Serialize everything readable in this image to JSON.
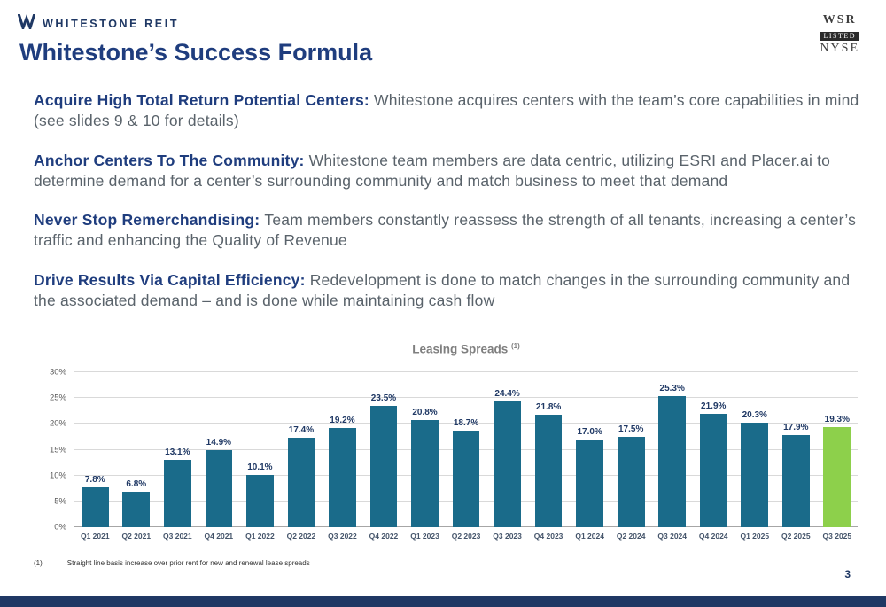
{
  "slide": {
    "page_number": "3"
  },
  "header": {
    "logo_text": "WHITESTONE REIT",
    "nyse_badge": {
      "ticker": "WSR",
      "listed": "LISTED",
      "exchange": "NYSE"
    }
  },
  "title": "Whitestone’s Success Formula",
  "paragraphs": [
    {
      "lead": "Acquire High Total Return Potential Centers:",
      "text": "Whitestone acquires centers with the team’s core capabilities in mind (see slides 9 & 10 for details)"
    },
    {
      "lead": "Anchor Centers To The Community:",
      "text": "Whitestone team members are data centric, utilizing ESRI and Placer.ai to determine demand for a center’s surrounding community and match business to meet that demand"
    },
    {
      "lead": "Never Stop Remerchandising:",
      "text": "Team members constantly reassess the strength of all tenants, increasing a center’s traffic and enhancing the Quality of Revenue"
    },
    {
      "lead": "Drive Results Via Capital Efficiency:",
      "text": "Redevelopment is done to match changes in the surrounding community and the associated demand – and is done while maintaining cash flow"
    }
  ],
  "chart_data": {
    "type": "bar",
    "title": "Leasing Spreads",
    "title_superscript": "(1)",
    "categories": [
      "Q1 2021",
      "Q2 2021",
      "Q3 2021",
      "Q4 2021",
      "Q1 2022",
      "Q2 2022",
      "Q3 2022",
      "Q4 2022",
      "Q1 2023",
      "Q2 2023",
      "Q3 2023",
      "Q4 2023",
      "Q1 2024",
      "Q2 2024",
      "Q3 2024",
      "Q4 2024",
      "Q1 2025",
      "Q2 2025",
      "Q3 2025"
    ],
    "values": [
      7.8,
      6.8,
      13.1,
      14.9,
      10.1,
      17.4,
      19.2,
      23.5,
      20.8,
      18.7,
      24.4,
      21.8,
      17.0,
      17.5,
      25.3,
      21.9,
      20.3,
      17.9,
      19.3
    ],
    "value_suffix": "%",
    "ylim": [
      0,
      30
    ],
    "ytick_step": 5,
    "ytick_labels": [
      "0%",
      "5%",
      "10%",
      "15%",
      "20%",
      "25%",
      "30%"
    ],
    "grid": true,
    "legend": "none",
    "bar_color": "#1a6b8a",
    "highlight_color": "#8dd04b",
    "highlight_index": 18
  },
  "footnote": {
    "marker": "(1)",
    "text": "Straight line basis increase over prior rent for new and renewal lease spreads"
  },
  "colors": {
    "accent_navy": "#1f3864",
    "title_blue": "#1f3d7e",
    "body_text": "#5a636b",
    "bar_teal": "#1a6b8a",
    "bar_green": "#8dd04b",
    "footer_bar": "#1f3864"
  }
}
